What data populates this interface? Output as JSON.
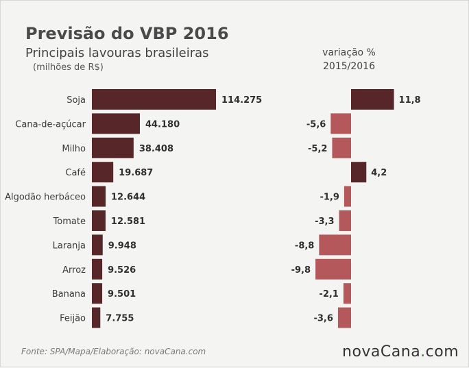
{
  "header": {
    "title": "Previsão do VBP 2016",
    "subtitle": "Principais lavouras brasileiras",
    "unit": "(milhões de R$)"
  },
  "variation_header": {
    "line1": "variação %",
    "line2": "2015/2016"
  },
  "footer": {
    "source": "Fonte: SPA/Mapa/Elaboração: novaCana.com",
    "brand_main": "novaCana",
    "brand_dot": ".",
    "brand_tld": "com"
  },
  "colors": {
    "positive": "#562629",
    "negative": "#b5585b",
    "value_bar": "#562629"
  },
  "chart_data": [
    {
      "type": "bar",
      "orientation": "horizontal",
      "title": "Principais lavouras brasileiras",
      "unit": "(milhões de R$)",
      "categories": [
        "Soja",
        "Cana-de-açúcar",
        "Milho",
        "Café",
        "Algodão herbáceo",
        "Tomate",
        "Laranja",
        "Arroz",
        "Banana",
        "Feijão"
      ],
      "values": [
        114275,
        44180,
        38408,
        19687,
        12644,
        12581,
        9948,
        9526,
        9501,
        7755
      ],
      "labels": [
        "114.275",
        "44.180",
        "38.408",
        "19.687",
        "12.644",
        "12.581",
        "9.948",
        "9.526",
        "9.501",
        "7.755"
      ],
      "xlim": [
        0,
        114275
      ]
    },
    {
      "type": "bar",
      "orientation": "horizontal",
      "title": "variação % 2015/2016",
      "categories": [
        "Soja",
        "Cana-de-açúcar",
        "Milho",
        "Café",
        "Algodão herbáceo",
        "Tomate",
        "Laranja",
        "Arroz",
        "Banana",
        "Feijão"
      ],
      "values": [
        11.8,
        -5.6,
        -5.2,
        4.2,
        -1.9,
        -3.3,
        -8.8,
        -9.8,
        -2.1,
        -3.6
      ],
      "labels": [
        "11,8",
        "-5,6",
        "-5,2",
        "4,2",
        "-1,9",
        "-3,3",
        "-8,8",
        "-9,8",
        "-2,1",
        "-3,6"
      ],
      "xlim": [
        -9.8,
        11.8
      ]
    }
  ]
}
